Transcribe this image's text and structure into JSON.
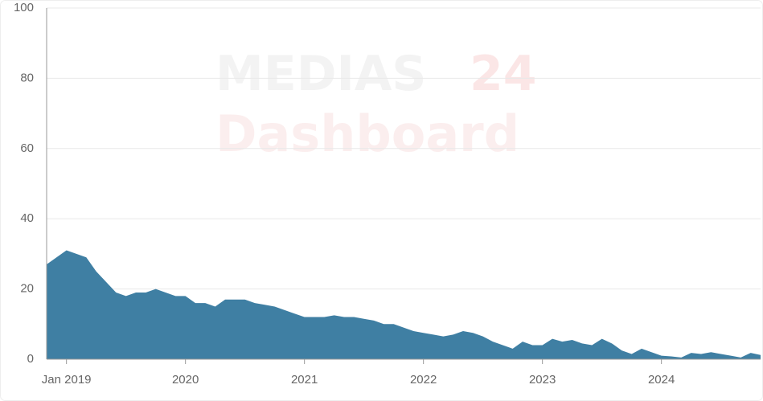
{
  "chart_data": {
    "type": "area",
    "watermark": {
      "brand": "MEDIAS",
      "brand_number": "24",
      "subtitle": "Dashboard"
    },
    "x": [
      "2018-11",
      "2018-12",
      "2019-01",
      "2019-02",
      "2019-03",
      "2019-04",
      "2019-05",
      "2019-06",
      "2019-07",
      "2019-08",
      "2019-09",
      "2019-10",
      "2019-11",
      "2019-12",
      "2020-01",
      "2020-02",
      "2020-03",
      "2020-04",
      "2020-05",
      "2020-06",
      "2020-07",
      "2020-08",
      "2020-09",
      "2020-10",
      "2020-11",
      "2020-12",
      "2021-01",
      "2021-02",
      "2021-03",
      "2021-04",
      "2021-05",
      "2021-06",
      "2021-07",
      "2021-08",
      "2021-09",
      "2021-10",
      "2021-11",
      "2021-12",
      "2022-01",
      "2022-02",
      "2022-03",
      "2022-04",
      "2022-05",
      "2022-06",
      "2022-07",
      "2022-08",
      "2022-09",
      "2022-10",
      "2022-11",
      "2022-12",
      "2023-01",
      "2023-02",
      "2023-03",
      "2023-04",
      "2023-05",
      "2023-06",
      "2023-07",
      "2023-08",
      "2023-09",
      "2023-10",
      "2023-11",
      "2023-12",
      "2024-01",
      "2024-02",
      "2024-03",
      "2024-04",
      "2024-05",
      "2024-06",
      "2024-07",
      "2024-08",
      "2024-09",
      "2024-10",
      "2024-11"
    ],
    "values": [
      27,
      29,
      31,
      30,
      29,
      25,
      22,
      19,
      18,
      19,
      19,
      20,
      19,
      18,
      18,
      16,
      16,
      15,
      17,
      17,
      17,
      16,
      15.5,
      15,
      14,
      13,
      12,
      12,
      12,
      12.5,
      12,
      12,
      11.5,
      11,
      10,
      10,
      9,
      8,
      7.5,
      7,
      6.5,
      7,
      8,
      7.5,
      6.5,
      5,
      4,
      3,
      5,
      4,
      4,
      5.8,
      5,
      5.5,
      4.5,
      4,
      5.8,
      4.5,
      2.5,
      1.5,
      3,
      2,
      1,
      0.8,
      0.5,
      1.8,
      1.5,
      2,
      1.5,
      1,
      0.5,
      1.8,
      1.2
    ],
    "color": "#3f7fa3",
    "xlim": [
      "2018-11",
      "2024-11"
    ],
    "xticks": [
      {
        "value": "2019-01",
        "label": "Jan 2019"
      },
      {
        "value": "2020-01",
        "label": "2020"
      },
      {
        "value": "2021-01",
        "label": "2021"
      },
      {
        "value": "2022-01",
        "label": "2022"
      },
      {
        "value": "2023-01",
        "label": "2023"
      },
      {
        "value": "2024-01",
        "label": "2024"
      }
    ],
    "ylim": [
      0,
      100
    ],
    "yticks": [
      0,
      20,
      40,
      60,
      80,
      100
    ],
    "grid": true
  }
}
